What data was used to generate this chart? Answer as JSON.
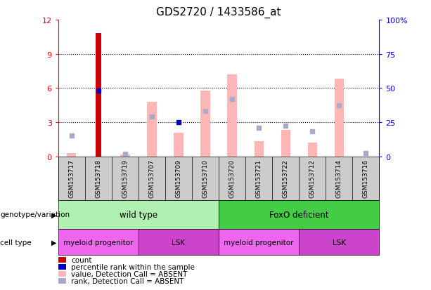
{
  "title": "GDS2720 / 1433586_at",
  "samples": [
    "GSM153717",
    "GSM153718",
    "GSM153719",
    "GSM153707",
    "GSM153709",
    "GSM153710",
    "GSM153720",
    "GSM153721",
    "GSM153722",
    "GSM153712",
    "GSM153714",
    "GSM153716"
  ],
  "count_values": [
    0,
    10.8,
    0,
    0,
    0,
    0,
    0,
    0,
    0,
    0,
    0,
    0
  ],
  "percentile_rank_values": [
    null,
    5.8,
    null,
    null,
    3.0,
    null,
    null,
    null,
    null,
    null,
    null,
    null
  ],
  "value_absent": [
    0.3,
    0,
    0.15,
    4.8,
    2.1,
    5.8,
    7.2,
    1.3,
    2.3,
    1.2,
    6.8,
    0.0
  ],
  "rank_absent": [
    1.8,
    0,
    0.2,
    3.5,
    null,
    4.0,
    5.0,
    2.5,
    2.7,
    2.2,
    4.5,
    0.3
  ],
  "ylim_left": [
    0,
    12
  ],
  "ylim_right": [
    0,
    100
  ],
  "yticks_left": [
    0,
    3,
    6,
    9,
    12
  ],
  "yticks_right": [
    0,
    25,
    50,
    75,
    100
  ],
  "ytick_labels_left": [
    "0",
    "3",
    "6",
    "9",
    "12"
  ],
  "ytick_labels_right": [
    "0",
    "25",
    "50",
    "75",
    "100%"
  ],
  "count_color": "#cc0000",
  "percentile_color": "#0000cc",
  "value_absent_color": "#ffb6b6",
  "rank_absent_color": "#aaaacc",
  "label_row1_groups": [
    {
      "label": "wild type",
      "start": 0,
      "end": 5,
      "color": "#b0f0b0"
    },
    {
      "label": "FoxO deficient",
      "start": 6,
      "end": 11,
      "color": "#44cc44"
    }
  ],
  "label_row2_groups": [
    {
      "label": "myeloid progenitor",
      "start": 0,
      "end": 2,
      "color": "#ee66ee"
    },
    {
      "label": "LSK",
      "start": 3,
      "end": 5,
      "color": "#cc44cc"
    },
    {
      "label": "myeloid progenitor",
      "start": 6,
      "end": 8,
      "color": "#ee66ee"
    },
    {
      "label": "LSK",
      "start": 9,
      "end": 11,
      "color": "#cc44cc"
    }
  ],
  "row1_label": "genotype/variation",
  "row2_label": "cell type",
  "legend_items": [
    {
      "label": "count",
      "color": "#cc0000"
    },
    {
      "label": "percentile rank within the sample",
      "color": "#0000cc"
    },
    {
      "label": "value, Detection Call = ABSENT",
      "color": "#ffb6b6"
    },
    {
      "label": "rank, Detection Call = ABSENT",
      "color": "#aaaacc"
    }
  ]
}
